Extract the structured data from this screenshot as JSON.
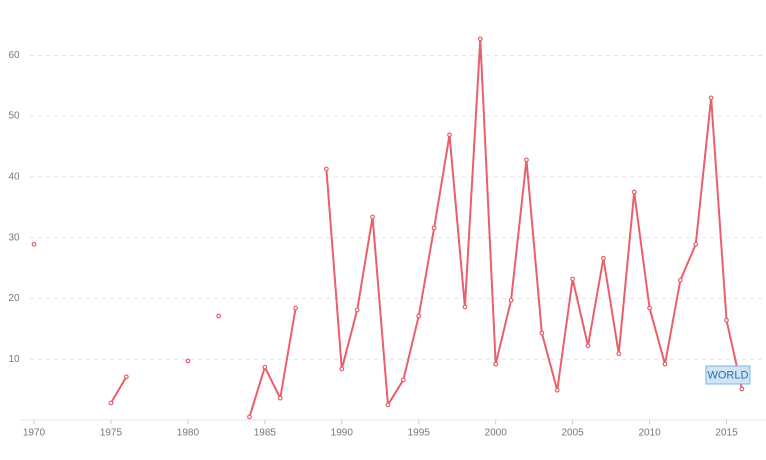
{
  "chart_data": {
    "type": "line",
    "x": [
      1970,
      1971,
      1972,
      1973,
      1974,
      1975,
      1976,
      1977,
      1978,
      1979,
      1980,
      1981,
      1982,
      1983,
      1984,
      1985,
      1986,
      1987,
      1988,
      1989,
      1990,
      1991,
      1992,
      1993,
      1994,
      1995,
      1996,
      1997,
      1998,
      1999,
      2000,
      2001,
      2002,
      2003,
      2004,
      2005,
      2006,
      2007,
      2008,
      2009,
      2010,
      2011,
      2012,
      2013,
      2014,
      2015,
      2016
    ],
    "series": [
      {
        "name": "WORLD",
        "color": "#e8606a",
        "values": [
          28.9,
          null,
          null,
          null,
          null,
          2.8,
          7.1,
          null,
          null,
          null,
          9.7,
          null,
          17.1,
          null,
          0.5,
          8.7,
          3.6,
          18.4,
          null,
          41.3,
          8.4,
          18.1,
          33.4,
          2.5,
          6.6,
          17.1,
          31.6,
          46.9,
          18.6,
          62.7,
          9.2,
          19.7,
          42.8,
          14.3,
          4.9,
          23.2,
          12.2,
          26.6,
          10.9,
          37.5,
          18.4,
          9.2,
          23.0,
          28.9,
          53.0,
          16.4,
          5.1
        ]
      }
    ],
    "xlim": [
      1970,
      2017.5
    ],
    "xticks": [
      1970,
      1975,
      1980,
      1985,
      1990,
      1995,
      2000,
      2005,
      2010,
      2015
    ],
    "ylim": [
      0,
      64
    ],
    "yticks": [
      10,
      20,
      30,
      40,
      50,
      60
    ],
    "grid": true
  }
}
